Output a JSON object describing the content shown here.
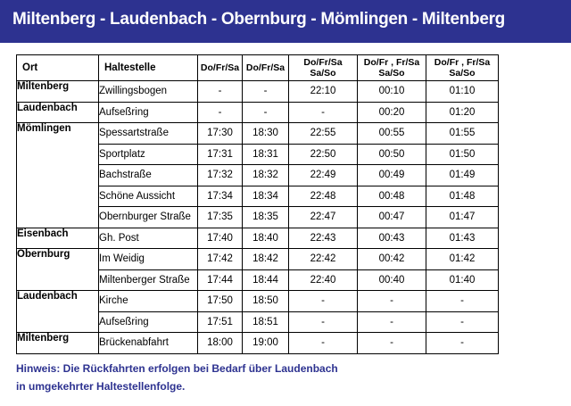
{
  "header": {
    "title": "Miltenberg - Laudenbach - Obernburg - Mömlingen - Miltenberg"
  },
  "table": {
    "columns": [
      "Ort",
      "Haltestelle",
      "Do/Fr/Sa",
      "Do/Fr/Sa",
      "Do/Fr/Sa\nSa/So",
      "Do/Fr , Fr/Sa\nSa/So",
      "Do/Fr , Fr/Sa\nSa/So"
    ],
    "rows": [
      {
        "ort": "Miltenberg",
        "stop": "Zwillingsbogen",
        "t": [
          "-",
          "-",
          "22:10",
          "00:10",
          "01:10"
        ]
      },
      {
        "ort": "Laudenbach",
        "stop": "Aufseßring",
        "t": [
          "-",
          "-",
          "-",
          "00:20",
          "01:20"
        ]
      },
      {
        "ort": "Mömlingen",
        "stop": "Spessartstraße",
        "t": [
          "17:30",
          "18:30",
          "22:55",
          "00:55",
          "01:55"
        ]
      },
      {
        "ort": "",
        "stop": "Sportplatz",
        "t": [
          "17:31",
          "18:31",
          "22:50",
          "00:50",
          "01:50"
        ]
      },
      {
        "ort": "",
        "stop": "Bachstraße",
        "t": [
          "17:32",
          "18:32",
          "22:49",
          "00:49",
          "01:49"
        ]
      },
      {
        "ort": "",
        "stop": "Schöne Aussicht",
        "t": [
          "17:34",
          "18:34",
          "22:48",
          "00:48",
          "01:48"
        ]
      },
      {
        "ort": "",
        "stop": "Obernburger Straße",
        "t": [
          "17:35",
          "18:35",
          "22:47",
          "00:47",
          "01:47"
        ]
      },
      {
        "ort": "Eisenbach",
        "stop": "Gh. Post",
        "t": [
          "17:40",
          "18:40",
          "22:43",
          "00:43",
          "01:43"
        ]
      },
      {
        "ort": "Obernburg",
        "stop": "Im Weidig",
        "t": [
          "17:42",
          "18:42",
          "22:42",
          "00:42",
          "01:42"
        ]
      },
      {
        "ort": "",
        "stop": "Miltenberger Straße",
        "t": [
          "17:44",
          "18:44",
          "22:40",
          "00:40",
          "01:40"
        ]
      },
      {
        "ort": "Laudenbach",
        "stop": "Kirche",
        "t": [
          "17:50",
          "18:50",
          "-",
          "-",
          "-"
        ]
      },
      {
        "ort": "",
        "stop": "Aufseßring",
        "t": [
          "17:51",
          "18:51",
          "-",
          "-",
          "-"
        ]
      },
      {
        "ort": "Miltenberg",
        "stop": "Brückenabfahrt",
        "t": [
          "18:00",
          "19:00",
          "-",
          "-",
          "-"
        ]
      }
    ]
  },
  "hint": {
    "line1": "Hinweis: Die Rückfahrten erfolgen bei Bedarf über Laudenbach",
    "line2": "in umgekehrter Haltestellenfolge."
  }
}
